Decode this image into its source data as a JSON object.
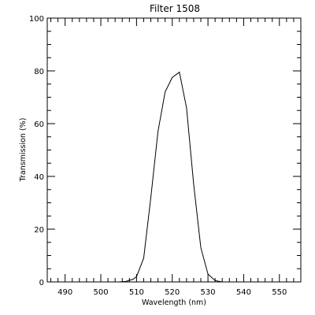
{
  "chart_data": {
    "type": "line",
    "title": "Filter 1508",
    "xlabel": "Wavelength (nm)",
    "ylabel": "Transmission (%)",
    "xlim": [
      485,
      556
    ],
    "ylim": [
      0,
      100
    ],
    "x_ticks": [
      "490",
      "500",
      "510",
      "520",
      "530",
      "540",
      "550"
    ],
    "y_ticks": [
      "0",
      "20",
      "40",
      "60",
      "80",
      "100"
    ],
    "grid": false,
    "series": [
      {
        "x": [
          505,
          507,
          509,
          510,
          512,
          514,
          516,
          518,
          520,
          522,
          524,
          526,
          528,
          530,
          532,
          534,
          536
        ],
        "y": [
          0,
          0.2,
          1,
          2,
          9,
          32,
          57,
          72,
          77.5,
          79.5,
          66,
          37,
          13,
          3,
          0.5,
          0,
          0
        ]
      }
    ],
    "colors": {
      "line": "#000000",
      "axes": "#000000",
      "background": "#ffffff"
    }
  }
}
